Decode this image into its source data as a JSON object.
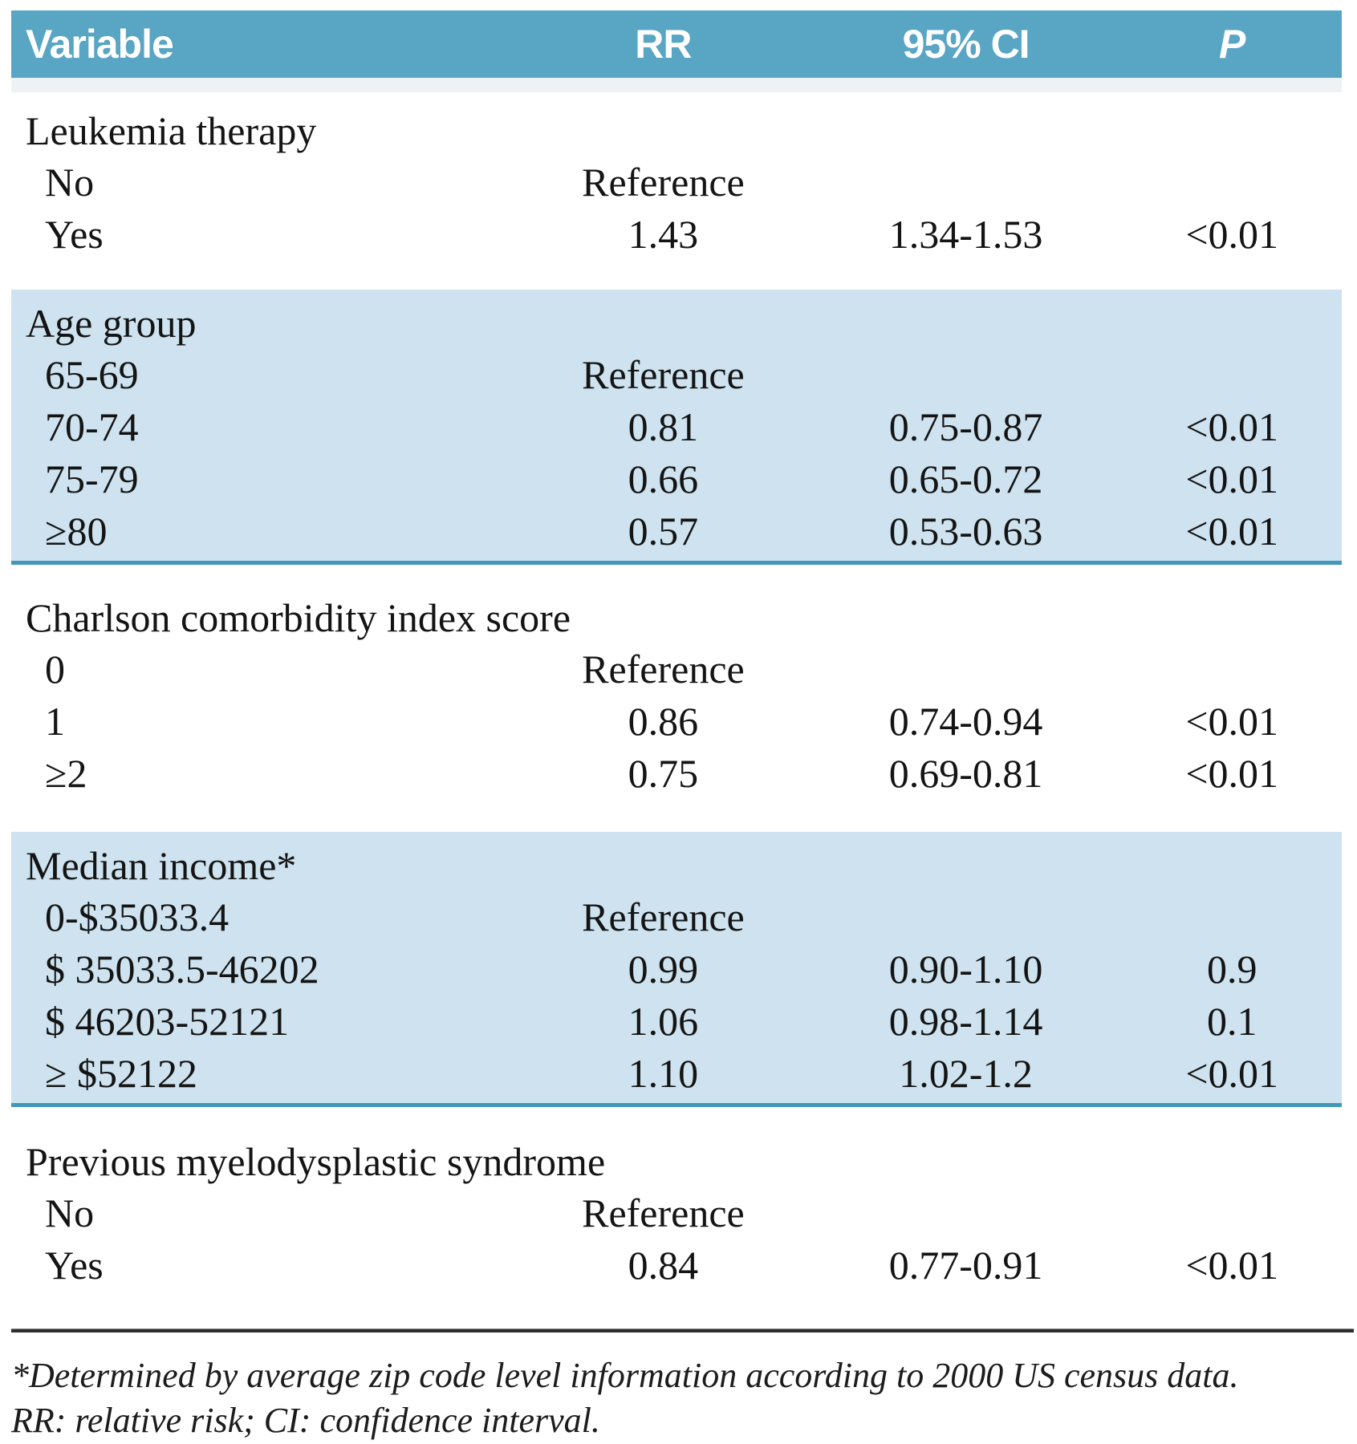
{
  "table": {
    "columns": [
      "Variable",
      "RR",
      "95% CI",
      "P"
    ],
    "colors": {
      "header_bg": "#58a5c4",
      "header_text": "#ffffff",
      "band_bg": "#cee3ef",
      "band_border": "#4198ba"
    },
    "sections": [
      {
        "title": "Leukemia therapy",
        "shaded": false,
        "rows": [
          {
            "variable": "No",
            "rr": "Reference",
            "ci": "",
            "p": ""
          },
          {
            "variable": "Yes",
            "rr": "1.43",
            "ci": "1.34-1.53",
            "p": "<0.01"
          }
        ]
      },
      {
        "title": "Age group",
        "shaded": true,
        "rows": [
          {
            "variable": "65-69",
            "rr": "Reference",
            "ci": "",
            "p": ""
          },
          {
            "variable": "70-74",
            "rr": "0.81",
            "ci": "0.75-0.87",
            "p": "<0.01"
          },
          {
            "variable": "75-79",
            "rr": "0.66",
            "ci": "0.65-0.72",
            "p": "<0.01"
          },
          {
            "variable": "≥80",
            "rr": "0.57",
            "ci": "0.53-0.63",
            "p": "<0.01"
          }
        ]
      },
      {
        "title": "Charlson comorbidity index score",
        "shaded": false,
        "rows": [
          {
            "variable": "0",
            "rr": "Reference",
            "ci": "",
            "p": ""
          },
          {
            "variable": "1",
            "rr": "0.86",
            "ci": "0.74-0.94",
            "p": "<0.01"
          },
          {
            "variable": "≥2",
            "rr": "0.75",
            "ci": "0.69-0.81",
            "p": "<0.01"
          }
        ]
      },
      {
        "title": "Median income*",
        "shaded": true,
        "rows": [
          {
            "variable": "0-$35033.4",
            "rr": "Reference",
            "ci": "",
            "p": ""
          },
          {
            "variable": "$ 35033.5-46202",
            "rr": "0.99",
            "ci": "0.90-1.10",
            "p": "0.9"
          },
          {
            "variable": "$ 46203-52121",
            "rr": "1.06",
            "ci": "0.98-1.14",
            "p": "0.1"
          },
          {
            "variable": "≥ $52122",
            "rr": "1.10",
            "ci": "1.02-1.2",
            "p": "<0.01"
          }
        ]
      },
      {
        "title": "Previous myelodysplastic syndrome",
        "shaded": false,
        "rows": [
          {
            "variable": "No",
            "rr": "Reference",
            "ci": "",
            "p": ""
          },
          {
            "variable": "Yes",
            "rr": "0.84",
            "ci": "0.77-0.91",
            "p": "<0.01"
          }
        ]
      }
    ],
    "footnotes": [
      "*Determined by average zip code level information according to 2000 US census data.",
      "RR: relative risk; CI: confidence interval."
    ]
  }
}
